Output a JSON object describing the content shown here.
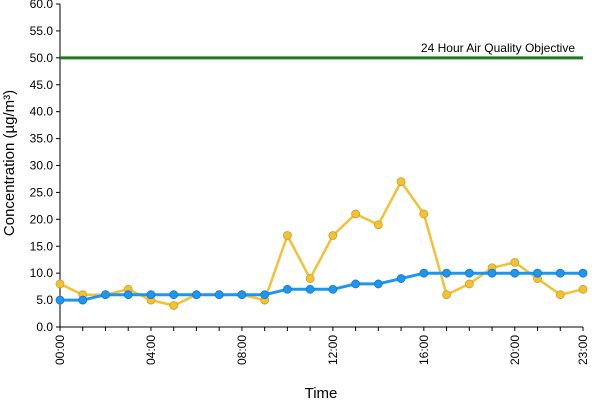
{
  "chart_data": {
    "type": "line",
    "xlabel": "Time",
    "ylabel": "Concentration (µg/m³)",
    "ylim": [
      0,
      60
    ],
    "yticks": [
      "0.0",
      "5.0",
      "10.0",
      "15.0",
      "20.0",
      "25.0",
      "30.0",
      "35.0",
      "40.0",
      "45.0",
      "50.0",
      "55.0",
      "60.0"
    ],
    "xticks": [
      "00:00",
      "04:00",
      "08:00",
      "12:00",
      "16:00",
      "20:00",
      "23:00"
    ],
    "x": [
      "00:00",
      "01:00",
      "02:00",
      "03:00",
      "04:00",
      "05:00",
      "06:00",
      "07:00",
      "08:00",
      "09:00",
      "10:00",
      "11:00",
      "12:00",
      "13:00",
      "14:00",
      "15:00",
      "16:00",
      "17:00",
      "18:00",
      "19:00",
      "20:00",
      "21:00",
      "22:00",
      "23:00"
    ],
    "series": [
      {
        "color": "#f2c234",
        "values": [
          8,
          6,
          6,
          7,
          5,
          4,
          6,
          6,
          6,
          5,
          17,
          9,
          17,
          21,
          19,
          27,
          21,
          6,
          8,
          11,
          12,
          9,
          6,
          7
        ]
      },
      {
        "color": "#1e96f0",
        "values": [
          5,
          5,
          6,
          6,
          6,
          6,
          6,
          6,
          6,
          6,
          7,
          7,
          7,
          8,
          8,
          9,
          10,
          10,
          10,
          10,
          10,
          10,
          10,
          10
        ]
      }
    ],
    "reference_line": {
      "label": "24 Hour Air Quality Objective",
      "value": 50,
      "color": "#1e7a1e"
    },
    "grid": false,
    "legend": "none"
  }
}
